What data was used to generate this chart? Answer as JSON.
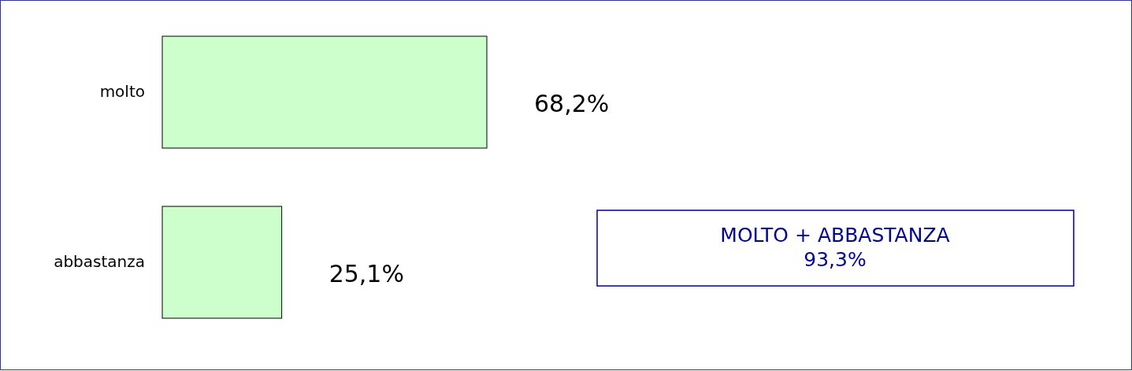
{
  "chart_data": {
    "type": "bar",
    "orientation": "horizontal",
    "categories": [
      "molto",
      "abbastanza"
    ],
    "values": [
      68.2,
      25.1
    ],
    "color": "#ccffcc",
    "value_labels": [
      "68,2%",
      "25,1%"
    ],
    "annotations": [
      "MOLTO + ABBASTANZA\n93,3%"
    ]
  }
}
